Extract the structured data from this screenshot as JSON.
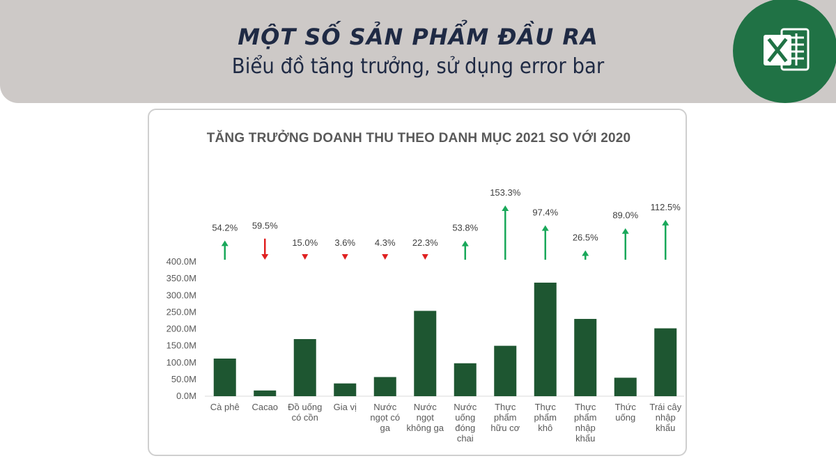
{
  "banner": {
    "title": "MỘT SỐ SẢN PHẨM ĐẦU RA",
    "subtitle": "Biểu đồ tăng trưởng, sử dụng error bar",
    "icon": "excel-icon",
    "accent_color": "#207245",
    "background_color": "#cdc9c7"
  },
  "chart_data": {
    "type": "bar",
    "title": "TĂNG TRƯỞNG DOANH THU THEO DANH MỤC 2021 SO VỚI 2020",
    "categories": [
      [
        "Cà phê"
      ],
      [
        "Cacao"
      ],
      [
        "Đồ uống",
        "có cồn"
      ],
      [
        "Gia vị"
      ],
      [
        "Nước",
        "ngọt có",
        "ga"
      ],
      [
        "Nước",
        "ngọt",
        "không ga"
      ],
      [
        "Nước",
        "uống",
        "đóng",
        "chai"
      ],
      [
        "Thực",
        "phẩm",
        "hữu cơ"
      ],
      [
        "Thực",
        "phẩm",
        "khô"
      ],
      [
        "Thực",
        "phẩm",
        "nhập",
        "khẩu"
      ],
      [
        "Thức",
        "uống"
      ],
      [
        "Trái cây",
        "nhập",
        "khẩu"
      ]
    ],
    "values": [
      112,
      17,
      170,
      38,
      57,
      254,
      98,
      150,
      338,
      230,
      55,
      202
    ],
    "value_unit": "M",
    "growth": [
      "54.2%",
      "59.5%",
      "15.0%",
      "3.6%",
      "4.3%",
      "22.3%",
      "53.8%",
      "153.3%",
      "97.4%",
      "26.5%",
      "89.0%",
      "112.5%"
    ],
    "growth_direction": [
      "up",
      "down",
      "down",
      "down",
      "down",
      "down",
      "up",
      "up",
      "up",
      "up",
      "up",
      "up"
    ],
    "growth_magnitude": [
      54.2,
      59.5,
      15.0,
      3.6,
      4.3,
      22.3,
      53.8,
      153.3,
      97.4,
      26.5,
      89.0,
      112.5
    ],
    "y_ticks": [
      "0.0M",
      "50.0M",
      "100.0M",
      "150.0M",
      "200.0M",
      "250.0M",
      "300.0M",
      "350.0M",
      "400.0M"
    ],
    "ylim": [
      0,
      400
    ],
    "bar_color": "#1e5631",
    "up_color": "#19a85a",
    "down_color": "#e02020",
    "grid": false
  }
}
